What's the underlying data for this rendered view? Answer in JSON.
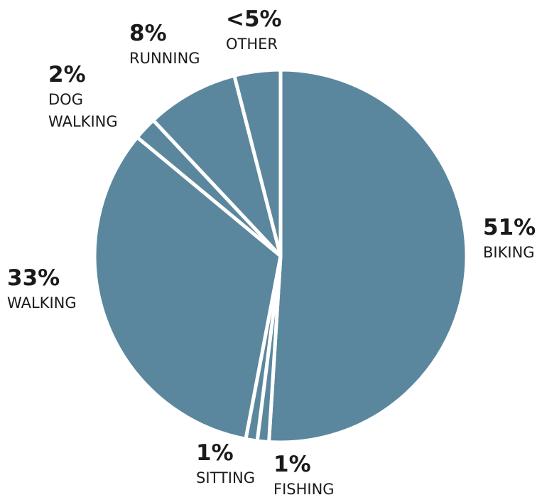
{
  "chart_data": {
    "type": "pie",
    "title": "",
    "start_angle_deg": 0,
    "direction": "clockwise",
    "slice_color": "#5b879e",
    "background": "#ffffff",
    "separator_color": "#ffffff",
    "slices": [
      {
        "name": "BIKING",
        "value": 51,
        "pct_label": "51%",
        "name_lines": [
          "BIKING"
        ]
      },
      {
        "name": "FISHING",
        "value": 1,
        "pct_label": "1%",
        "name_lines": [
          "FISHING"
        ]
      },
      {
        "name": "SITTING",
        "value": 1,
        "pct_label": "1%",
        "name_lines": [
          "SITTING"
        ]
      },
      {
        "name": "WALKING",
        "value": 33,
        "pct_label": "33%",
        "name_lines": [
          "WALKING"
        ]
      },
      {
        "name": "DOG WALKING",
        "value": 2,
        "pct_label": "2%",
        "name_lines": [
          "DOG",
          "WALKING"
        ]
      },
      {
        "name": "RUNNING",
        "value": 8,
        "pct_label": "8%",
        "name_lines": [
          "RUNNING"
        ]
      },
      {
        "name": "OTHER",
        "value": 4,
        "pct_label": "<5%",
        "name_lines": [
          "OTHER"
        ]
      }
    ]
  }
}
